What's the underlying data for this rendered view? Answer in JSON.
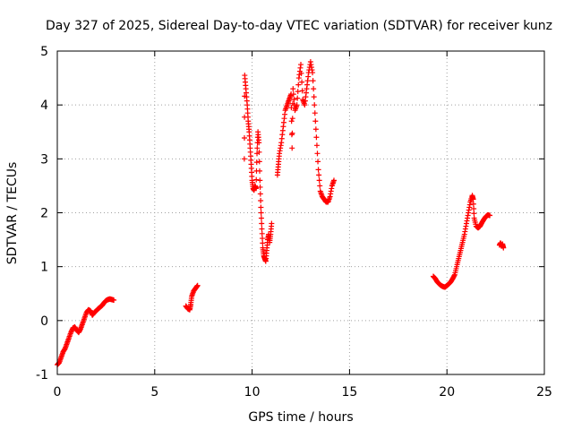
{
  "chart_data": {
    "type": "scatter",
    "title": "Day 327 of 2025, Sidereal Day-to-day VTEC variation (SDTVAR) for receiver kunz",
    "xlabel": "GPS time / hours",
    "ylabel": "SDTVAR / TECUs",
    "xlim": [
      0,
      25
    ],
    "ylim": [
      -1,
      5
    ],
    "xticks": [
      0,
      5,
      10,
      15,
      20,
      25
    ],
    "yticks": [
      -1,
      0,
      1,
      2,
      3,
      4,
      5
    ],
    "grid": true,
    "legend": "none",
    "marker": "+",
    "series": [
      {
        "name": "SDTVAR",
        "color": "#ff0000",
        "segments": [
          [
            [
              0.0,
              -0.82
            ],
            [
              0.1,
              -0.78
            ],
            [
              0.2,
              -0.68
            ],
            [
              0.3,
              -0.58
            ],
            [
              0.4,
              -0.52
            ],
            [
              0.5,
              -0.42
            ],
            [
              0.6,
              -0.32
            ],
            [
              0.7,
              -0.22
            ],
            [
              0.8,
              -0.14
            ],
            [
              0.9,
              -0.12
            ],
            [
              1.0,
              -0.18
            ],
            [
              1.1,
              -0.22
            ],
            [
              1.2,
              -0.15
            ],
            [
              1.3,
              -0.05
            ],
            [
              1.4,
              0.05
            ],
            [
              1.5,
              0.15
            ],
            [
              1.6,
              0.2
            ],
            [
              1.7,
              0.18
            ],
            [
              1.8,
              0.1
            ],
            [
              1.9,
              0.15
            ],
            [
              2.0,
              0.18
            ],
            [
              2.1,
              0.22
            ],
            [
              2.2,
              0.25
            ],
            [
              2.3,
              0.28
            ],
            [
              2.4,
              0.33
            ],
            [
              2.5,
              0.37
            ],
            [
              2.6,
              0.39
            ],
            [
              2.7,
              0.4
            ],
            [
              2.8,
              0.39
            ],
            [
              2.9,
              0.38
            ]
          ],
          [
            [
              6.6,
              0.27
            ],
            [
              6.7,
              0.22
            ],
            [
              6.8,
              0.2
            ],
            [
              6.85,
              0.3
            ],
            [
              6.9,
              0.45
            ],
            [
              7.0,
              0.55
            ],
            [
              7.1,
              0.6
            ],
            [
              7.2,
              0.65
            ]
          ],
          [
            [
              9.6,
              3.0
            ],
            [
              9.62,
              4.55
            ],
            [
              9.68,
              4.3
            ],
            [
              9.75,
              4.0
            ],
            [
              9.8,
              3.7
            ],
            [
              9.85,
              3.5
            ],
            [
              9.9,
              3.2
            ],
            [
              9.95,
              2.9
            ],
            [
              10.0,
              2.6
            ],
            [
              10.05,
              2.45
            ],
            [
              10.1,
              2.42
            ],
            [
              10.15,
              2.5
            ],
            [
              10.2,
              2.45
            ],
            [
              10.25,
              3.1
            ],
            [
              10.3,
              3.5
            ],
            [
              10.35,
              3.3
            ],
            [
              10.4,
              2.6
            ],
            [
              10.45,
              2.1
            ],
            [
              10.5,
              1.7
            ],
            [
              10.55,
              1.35
            ],
            [
              10.6,
              1.2
            ],
            [
              10.65,
              1.15
            ],
            [
              10.7,
              1.1
            ],
            [
              10.75,
              1.3
            ],
            [
              10.8,
              1.5
            ],
            [
              10.85,
              1.6
            ],
            [
              10.9,
              1.45
            ],
            [
              10.95,
              1.6
            ],
            [
              11.0,
              1.8
            ]
          ],
          [
            [
              11.3,
              2.7
            ],
            [
              11.35,
              2.9
            ],
            [
              11.4,
              3.1
            ],
            [
              11.5,
              3.3
            ],
            [
              11.6,
              3.6
            ],
            [
              11.7,
              3.9
            ],
            [
              11.8,
              4.0
            ],
            [
              11.9,
              4.1
            ],
            [
              12.0,
              4.2
            ],
            [
              12.05,
              3.2
            ],
            [
              12.1,
              4.3
            ],
            [
              12.2,
              3.9
            ],
            [
              12.3,
              4.0
            ],
            [
              12.4,
              4.5
            ],
            [
              12.5,
              4.75
            ],
            [
              12.6,
              4.1
            ],
            [
              12.7,
              4.0
            ],
            [
              12.8,
              4.3
            ],
            [
              12.9,
              4.6
            ],
            [
              13.0,
              4.8
            ],
            [
              13.1,
              4.6
            ],
            [
              13.2,
              4.0
            ],
            [
              13.3,
              3.4
            ],
            [
              13.4,
              2.8
            ],
            [
              13.5,
              2.4
            ],
            [
              13.6,
              2.3
            ],
            [
              13.7,
              2.25
            ],
            [
              13.8,
              2.2
            ],
            [
              13.9,
              2.2
            ],
            [
              14.0,
              2.3
            ],
            [
              14.1,
              2.5
            ],
            [
              14.2,
              2.6
            ]
          ],
          [
            [
              19.3,
              0.82
            ],
            [
              19.4,
              0.78
            ],
            [
              19.5,
              0.72
            ],
            [
              19.6,
              0.68
            ],
            [
              19.7,
              0.65
            ],
            [
              19.8,
              0.63
            ],
            [
              19.9,
              0.62
            ],
            [
              20.0,
              0.65
            ],
            [
              20.1,
              0.68
            ],
            [
              20.2,
              0.72
            ],
            [
              20.3,
              0.78
            ],
            [
              20.4,
              0.85
            ],
            [
              20.5,
              1.0
            ],
            [
              20.6,
              1.15
            ],
            [
              20.7,
              1.3
            ],
            [
              20.8,
              1.45
            ],
            [
              20.9,
              1.6
            ],
            [
              21.0,
              1.8
            ],
            [
              21.1,
              2.0
            ],
            [
              21.2,
              2.2
            ],
            [
              21.3,
              2.32
            ],
            [
              21.35,
              2.25
            ],
            [
              21.4,
              1.9
            ],
            [
              21.5,
              1.75
            ],
            [
              21.6,
              1.72
            ],
            [
              21.7,
              1.75
            ],
            [
              21.8,
              1.82
            ],
            [
              21.9,
              1.88
            ],
            [
              22.0,
              1.93
            ],
            [
              22.1,
              1.96
            ],
            [
              22.2,
              1.95
            ]
          ],
          [
            [
              22.7,
              1.4
            ],
            [
              22.75,
              1.44
            ],
            [
              22.8,
              1.38
            ],
            [
              22.85,
              1.42
            ],
            [
              22.9,
              1.35
            ]
          ]
        ]
      }
    ]
  }
}
